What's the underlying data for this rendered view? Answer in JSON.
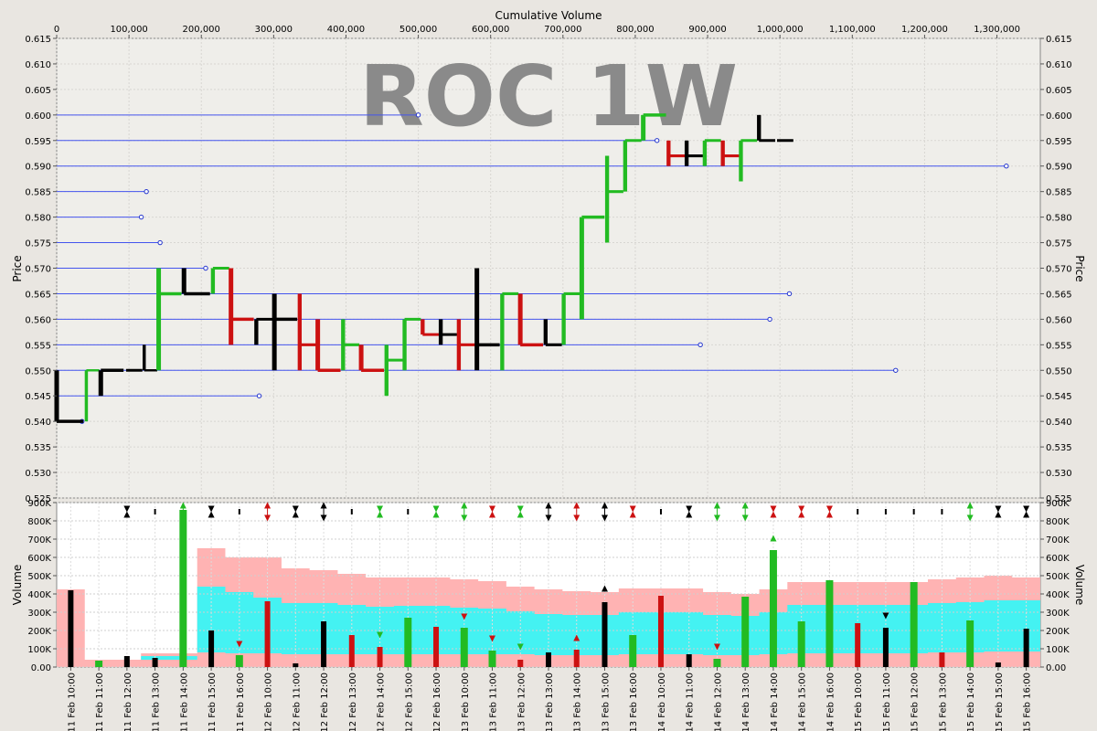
{
  "watermark": "ROC 1W",
  "chart_data": [
    {
      "type": "ohlc",
      "top_axis_label": "Cumulative Volume",
      "ylabel": "Price",
      "x_ticks": [
        0,
        100000,
        200000,
        300000,
        400000,
        500000,
        600000,
        700000,
        800000,
        900000,
        1000000,
        1100000,
        1200000,
        1300000
      ],
      "x_tick_labels": [
        "0",
        "100,000",
        "200,000",
        "300,000",
        "400,000",
        "500,000",
        "600,000",
        "700,000",
        "800,000",
        "900,000",
        "1,000,000",
        "1,100,000",
        "1,200,000",
        "1,300,000"
      ],
      "xlim": [
        0,
        1360000
      ],
      "y_ticks": [
        0.525,
        0.53,
        0.535,
        0.54,
        0.545,
        0.55,
        0.555,
        0.56,
        0.565,
        0.57,
        0.575,
        0.58,
        0.585,
        0.59,
        0.595,
        0.6,
        0.605,
        0.61,
        0.615
      ],
      "y_tick_labels": [
        "0.525",
        "0.530",
        "0.535",
        "0.540",
        "0.545",
        "0.550",
        "0.555",
        "0.560",
        "0.565",
        "0.570",
        "0.575",
        "0.580",
        "0.585",
        "0.590",
        "0.595",
        "0.600",
        "0.605",
        "0.610",
        "0.615"
      ],
      "ylim": [
        0.525,
        0.615
      ],
      "grid": true,
      "bars": [
        {
          "x0": 0,
          "x1": 41000,
          "open": 0.55,
          "high": 0.55,
          "low": 0.54,
          "close": 0.54,
          "color": "black"
        },
        {
          "x0": 41000,
          "x1": 61000,
          "open": 0.54,
          "high": 0.55,
          "low": 0.54,
          "close": 0.55,
          "color": "green"
        },
        {
          "x0": 61000,
          "x1": 96000,
          "open": 0.55,
          "high": 0.55,
          "low": 0.545,
          "close": 0.55,
          "color": "black"
        },
        {
          "x0": 96000,
          "x1": 121000,
          "open": 0.55,
          "high": 0.55,
          "low": 0.55,
          "close": 0.55,
          "color": "black"
        },
        {
          "x0": 121000,
          "x1": 141000,
          "open": 0.55,
          "high": 0.555,
          "low": 0.55,
          "close": 0.55,
          "color": "black"
        },
        {
          "x0": 141000,
          "x1": 176000,
          "open": 0.55,
          "high": 0.57,
          "low": 0.55,
          "close": 0.565,
          "color": "green"
        },
        {
          "x0": 176000,
          "x1": 216000,
          "open": 0.565,
          "high": 0.57,
          "low": 0.565,
          "close": 0.565,
          "color": "black"
        },
        {
          "x0": 216000,
          "x1": 241000,
          "open": 0.565,
          "high": 0.57,
          "low": 0.565,
          "close": 0.57,
          "color": "green"
        },
        {
          "x0": 241000,
          "x1": 276000,
          "open": 0.57,
          "high": 0.57,
          "low": 0.555,
          "close": 0.56,
          "color": "red"
        },
        {
          "x0": 276000,
          "x1": 301000,
          "open": 0.56,
          "high": 0.56,
          "low": 0.555,
          "close": 0.56,
          "color": "black"
        },
        {
          "x0": 301000,
          "x1": 336000,
          "open": 0.56,
          "high": 0.565,
          "low": 0.55,
          "close": 0.56,
          "color": "black"
        },
        {
          "x0": 336000,
          "x1": 361000,
          "open": 0.56,
          "high": 0.565,
          "low": 0.55,
          "close": 0.555,
          "color": "red"
        },
        {
          "x0": 361000,
          "x1": 396000,
          "open": 0.56,
          "high": 0.56,
          "low": 0.55,
          "close": 0.55,
          "color": "red"
        },
        {
          "x0": 396000,
          "x1": 421000,
          "open": 0.55,
          "high": 0.56,
          "low": 0.55,
          "close": 0.555,
          "color": "green"
        },
        {
          "x0": 421000,
          "x1": 456000,
          "open": 0.555,
          "high": 0.555,
          "low": 0.55,
          "close": 0.55,
          "color": "red"
        },
        {
          "x0": 456000,
          "x1": 481000,
          "open": 0.55,
          "high": 0.555,
          "low": 0.545,
          "close": 0.552,
          "color": "green"
        },
        {
          "x0": 481000,
          "x1": 506000,
          "open": 0.552,
          "high": 0.56,
          "low": 0.55,
          "close": 0.56,
          "color": "green"
        },
        {
          "x0": 506000,
          "x1": 531000,
          "open": 0.56,
          "high": 0.56,
          "low": 0.557,
          "close": 0.557,
          "color": "red"
        },
        {
          "x0": 531000,
          "x1": 556000,
          "open": 0.557,
          "high": 0.56,
          "low": 0.555,
          "close": 0.557,
          "color": "black"
        },
        {
          "x0": 556000,
          "x1": 581000,
          "open": 0.557,
          "high": 0.56,
          "low": 0.55,
          "close": 0.555,
          "color": "red"
        },
        {
          "x0": 581000,
          "x1": 616000,
          "open": 0.555,
          "high": 0.57,
          "low": 0.55,
          "close": 0.555,
          "color": "black"
        },
        {
          "x0": 616000,
          "x1": 641000,
          "open": 0.555,
          "high": 0.565,
          "low": 0.55,
          "close": 0.565,
          "color": "green"
        },
        {
          "x0": 641000,
          "x1": 676000,
          "open": 0.565,
          "high": 0.565,
          "low": 0.555,
          "close": 0.555,
          "color": "red"
        },
        {
          "x0": 676000,
          "x1": 701000,
          "open": 0.555,
          "high": 0.56,
          "low": 0.555,
          "close": 0.555,
          "color": "black"
        },
        {
          "x0": 701000,
          "x1": 726000,
          "open": 0.555,
          "high": 0.565,
          "low": 0.555,
          "close": 0.565,
          "color": "green"
        },
        {
          "x0": 726000,
          "x1": 761000,
          "open": 0.565,
          "high": 0.58,
          "low": 0.56,
          "close": 0.58,
          "color": "green"
        },
        {
          "x0": 761000,
          "x1": 786000,
          "open": 0.58,
          "high": 0.592,
          "low": 0.575,
          "close": 0.585,
          "color": "green"
        },
        {
          "x0": 786000,
          "x1": 811000,
          "open": 0.585,
          "high": 0.595,
          "low": 0.585,
          "close": 0.595,
          "color": "green"
        },
        {
          "x0": 811000,
          "x1": 846000,
          "open": 0.595,
          "high": 0.6,
          "low": 0.595,
          "close": 0.6,
          "color": "green"
        },
        {
          "x0": 846000,
          "x1": 871000,
          "open": 0.592,
          "high": 0.595,
          "low": 0.59,
          "close": 0.592,
          "color": "red"
        },
        {
          "x0": 871000,
          "x1": 896000,
          "open": 0.592,
          "high": 0.595,
          "low": 0.59,
          "close": 0.592,
          "color": "black"
        },
        {
          "x0": 896000,
          "x1": 921000,
          "open": 0.59,
          "high": 0.595,
          "low": 0.59,
          "close": 0.595,
          "color": "green"
        },
        {
          "x0": 921000,
          "x1": 946000,
          "open": 0.592,
          "high": 0.595,
          "low": 0.59,
          "close": 0.592,
          "color": "red"
        },
        {
          "x0": 946000,
          "x1": 971000,
          "open": 0.587,
          "high": 0.595,
          "low": 0.587,
          "close": 0.595,
          "color": "green"
        },
        {
          "x0": 971000,
          "x1": 996000,
          "open": 0.6,
          "high": 0.6,
          "low": 0.595,
          "close": 0.595,
          "color": "black"
        },
        {
          "x0": 996000,
          "x1": 1021000,
          "open": 0.595,
          "high": 0.595,
          "low": 0.595,
          "close": 0.595,
          "color": "black"
        }
      ],
      "level_lines": [
        {
          "price": 0.6,
          "x_end": 500000
        },
        {
          "price": 0.595,
          "x_end": 830000
        },
        {
          "price": 0.59,
          "x_end": 1313000
        },
        {
          "price": 0.585,
          "x_end": 124000
        },
        {
          "price": 0.58,
          "x_end": 117000
        },
        {
          "price": 0.575,
          "x_end": 143000
        },
        {
          "price": 0.57,
          "x_end": 206000
        },
        {
          "price": 0.565,
          "x_end": 1013000
        },
        {
          "price": 0.56,
          "x_end": 986000
        },
        {
          "price": 0.555,
          "x_end": 890000
        },
        {
          "price": 0.55,
          "x_end": 1160000
        },
        {
          "price": 0.545,
          "x_end": 280000
        },
        {
          "price": 0.54,
          "x_end": 35000
        }
      ]
    },
    {
      "type": "bar",
      "ylabel": "Volume",
      "ylim": [
        0,
        900000
      ],
      "y_ticks": [
        0,
        100000,
        200000,
        300000,
        400000,
        500000,
        600000,
        700000,
        800000,
        900000
      ],
      "y_tick_labels": [
        "0.00",
        "100K",
        "200K",
        "300K",
        "400K",
        "500K",
        "600K",
        "700K",
        "800K",
        "900K"
      ],
      "y_tick_labels_left": [
        "0.00",
        "100K",
        "200K",
        "300K",
        "400K",
        "500K",
        "600K",
        "700K",
        "800K",
        "900K"
      ],
      "grid": true,
      "categories": [
        "11 Feb 10:00",
        "11 Feb 11:00",
        "11 Feb 12:00",
        "11 Feb 13:00",
        "11 Feb 14:00",
        "11 Feb 15:00",
        "11 Feb 16:00",
        "12 Feb 10:00",
        "12 Feb 11:00",
        "12 Feb 12:00",
        "12 Feb 13:00",
        "12 Feb 14:00",
        "12 Feb 15:00",
        "12 Feb 16:00",
        "13 Feb 10:00",
        "13 Feb 11:00",
        "13 Feb 12:00",
        "13 Feb 13:00",
        "13 Feb 14:00",
        "13 Feb 15:00",
        "13 Feb 16:00",
        "14 Feb 10:00",
        "14 Feb 11:00",
        "14 Feb 12:00",
        "14 Feb 13:00",
        "14 Feb 14:00",
        "14 Feb 15:00",
        "14 Feb 16:00",
        "15 Feb 10:00",
        "15 Feb 11:00",
        "15 Feb 12:00",
        "15 Feb 13:00",
        "15 Feb 14:00",
        "15 Feb 15:00",
        "15 Feb 16:00"
      ],
      "bars": [
        {
          "v": 420000,
          "color": "black"
        },
        {
          "v": 35000,
          "color": "green"
        },
        {
          "v": 60000,
          "color": "black"
        },
        {
          "v": 50000,
          "color": "black"
        },
        {
          "v": 860000,
          "color": "green"
        },
        {
          "v": 200000,
          "color": "black"
        },
        {
          "v": 65000,
          "color": "green"
        },
        {
          "v": 360000,
          "color": "red"
        },
        {
          "v": 20000,
          "color": "black"
        },
        {
          "v": 250000,
          "color": "black"
        },
        {
          "v": 175000,
          "color": "red"
        },
        {
          "v": 110000,
          "color": "red"
        },
        {
          "v": 270000,
          "color": "green"
        },
        {
          "v": 220000,
          "color": "red"
        },
        {
          "v": 215000,
          "color": "green"
        },
        {
          "v": 90000,
          "color": "green"
        },
        {
          "v": 40000,
          "color": "red"
        },
        {
          "v": 80000,
          "color": "black"
        },
        {
          "v": 95000,
          "color": "red"
        },
        {
          "v": 355000,
          "color": "black"
        },
        {
          "v": 175000,
          "color": "green"
        },
        {
          "v": 390000,
          "color": "red"
        },
        {
          "v": 70000,
          "color": "black"
        },
        {
          "v": 45000,
          "color": "green"
        },
        {
          "v": 385000,
          "color": "green"
        },
        {
          "v": 640000,
          "color": "green"
        },
        {
          "v": 250000,
          "color": "green"
        },
        {
          "v": 475000,
          "color": "green"
        },
        {
          "v": 240000,
          "color": "red"
        },
        {
          "v": 215000,
          "color": "black"
        },
        {
          "v": 465000,
          "color": "green"
        },
        {
          "v": 80000,
          "color": "red"
        },
        {
          "v": 255000,
          "color": "green"
        },
        {
          "v": 25000,
          "color": "black"
        },
        {
          "v": 210000,
          "color": "black"
        }
      ],
      "band_pink": [
        425000,
        40000,
        40000,
        75000,
        75000,
        650000,
        600000,
        600000,
        540000,
        530000,
        510000,
        490000,
        490000,
        490000,
        480000,
        470000,
        440000,
        425000,
        415000,
        410000,
        430000,
        430000,
        430000,
        410000,
        400000,
        425000,
        465000,
        465000,
        465000,
        465000,
        465000,
        480000,
        490000,
        500000,
        490000
      ],
      "band_cyan_top": [
        0,
        0,
        0,
        60000,
        60000,
        440000,
        410000,
        380000,
        350000,
        350000,
        340000,
        330000,
        335000,
        335000,
        325000,
        320000,
        305000,
        290000,
        285000,
        285000,
        300000,
        300000,
        300000,
        285000,
        280000,
        300000,
        340000,
        340000,
        340000,
        340000,
        340000,
        350000,
        355000,
        365000,
        365000
      ],
      "band_cyan_bottom": [
        0,
        0,
        0,
        40000,
        40000,
        80000,
        75000,
        75000,
        70000,
        70000,
        70000,
        70000,
        70000,
        70000,
        70000,
        70000,
        70000,
        65000,
        65000,
        65000,
        70000,
        70000,
        70000,
        65000,
        65000,
        70000,
        75000,
        75000,
        75000,
        75000,
        75000,
        80000,
        80000,
        85000,
        85000
      ],
      "top_markers": [
        {
          "i": 2,
          "color": "black",
          "kind": "hourglass"
        },
        {
          "i": 3,
          "color": "black",
          "kind": "tick"
        },
        {
          "i": 4,
          "color": "green",
          "kind": "up"
        },
        {
          "i": 5,
          "color": "black",
          "kind": "hourglass"
        },
        {
          "i": 6,
          "color": "black",
          "kind": "tick"
        },
        {
          "i": 7,
          "color": "red",
          "kind": "both"
        },
        {
          "i": 8,
          "color": "black",
          "kind": "hourglass"
        },
        {
          "i": 9,
          "color": "black",
          "kind": "both"
        },
        {
          "i": 10,
          "color": "black",
          "kind": "tick"
        },
        {
          "i": 11,
          "color": "green",
          "kind": "hourglass"
        },
        {
          "i": 12,
          "color": "black",
          "kind": "tick"
        },
        {
          "i": 13,
          "color": "green",
          "kind": "hourglass"
        },
        {
          "i": 14,
          "color": "green",
          "kind": "both"
        },
        {
          "i": 15,
          "color": "red",
          "kind": "hourglass"
        },
        {
          "i": 16,
          "color": "green",
          "kind": "hourglass"
        },
        {
          "i": 17,
          "color": "black",
          "kind": "both"
        },
        {
          "i": 18,
          "color": "red",
          "kind": "both"
        },
        {
          "i": 19,
          "color": "black",
          "kind": "both"
        },
        {
          "i": 20,
          "color": "red",
          "kind": "hourglass"
        },
        {
          "i": 21,
          "color": "black",
          "kind": "tick"
        },
        {
          "i": 22,
          "color": "black",
          "kind": "hourglass"
        },
        {
          "i": 23,
          "color": "green",
          "kind": "both"
        },
        {
          "i": 24,
          "color": "green",
          "kind": "both"
        },
        {
          "i": 25,
          "color": "red",
          "kind": "hourglass"
        },
        {
          "i": 26,
          "color": "red",
          "kind": "hourglass"
        },
        {
          "i": 27,
          "color": "red",
          "kind": "hourglass"
        },
        {
          "i": 28,
          "color": "black",
          "kind": "tick"
        },
        {
          "i": 29,
          "color": "black",
          "kind": "tick"
        },
        {
          "i": 30,
          "color": "black",
          "kind": "tick"
        },
        {
          "i": 31,
          "color": "black",
          "kind": "tick"
        },
        {
          "i": 32,
          "color": "green",
          "kind": "both"
        },
        {
          "i": 33,
          "color": "black",
          "kind": "hourglass"
        },
        {
          "i": 34,
          "color": "black",
          "kind": "hourglass"
        }
      ],
      "bar_markers": [
        {
          "i": 6,
          "v": 125000,
          "color": "red",
          "dir": "down"
        },
        {
          "i": 11,
          "v": 175000,
          "color": "green",
          "dir": "down"
        },
        {
          "i": 14,
          "v": 275000,
          "color": "red",
          "dir": "down"
        },
        {
          "i": 15,
          "v": 155000,
          "color": "red",
          "dir": "down"
        },
        {
          "i": 16,
          "v": 110000,
          "color": "green",
          "dir": "down"
        },
        {
          "i": 18,
          "v": 160000,
          "color": "red",
          "dir": "up"
        },
        {
          "i": 19,
          "v": 430000,
          "color": "black",
          "dir": "up"
        },
        {
          "i": 23,
          "v": 110000,
          "color": "red",
          "dir": "down"
        },
        {
          "i": 25,
          "v": 705000,
          "color": "green",
          "dir": "up"
        },
        {
          "i": 29,
          "v": 280000,
          "color": "black",
          "dir": "down"
        }
      ]
    }
  ]
}
